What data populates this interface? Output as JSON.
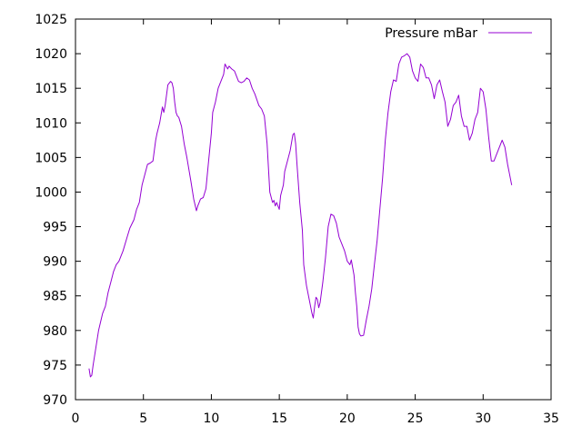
{
  "chart_data": {
    "type": "line",
    "title": "",
    "xlabel": "",
    "ylabel": "",
    "xlim": [
      0,
      35
    ],
    "ylim": [
      970,
      1025
    ],
    "grid": false,
    "legend_position": "top-right",
    "x_ticks": [
      0,
      5,
      10,
      15,
      20,
      25,
      30,
      35
    ],
    "y_ticks": [
      970,
      975,
      980,
      985,
      990,
      995,
      1000,
      1005,
      1010,
      1015,
      1020,
      1025
    ],
    "series": [
      {
        "name": "Pressure mBar",
        "color": "#9400d3",
        "x": [
          1.0,
          1.1,
          1.2,
          1.3,
          1.5,
          1.7,
          2.0,
          2.2,
          2.4,
          2.6,
          2.8,
          3.0,
          3.2,
          3.5,
          3.8,
          4.0,
          4.3,
          4.5,
          4.7,
          4.9,
          5.1,
          5.3,
          5.5,
          5.7,
          5.8,
          5.9,
          6.0,
          6.2,
          6.4,
          6.5,
          6.6,
          6.7,
          6.8,
          7.0,
          7.1,
          7.2,
          7.3,
          7.4,
          7.5,
          7.6,
          7.8,
          8.0,
          8.2,
          8.5,
          8.7,
          8.9,
          9.0,
          9.1,
          9.2,
          9.4,
          9.6,
          9.8,
          10.0,
          10.1,
          10.3,
          10.5,
          10.7,
          10.9,
          11.0,
          11.2,
          11.3,
          11.5,
          11.7,
          12.0,
          12.2,
          12.4,
          12.6,
          12.8,
          13.0,
          13.2,
          13.5,
          13.7,
          13.9,
          14.1,
          14.3,
          14.5,
          14.6,
          14.7,
          14.8,
          15.0,
          15.1,
          15.3,
          15.4,
          15.6,
          15.8,
          16.0,
          16.1,
          16.2,
          16.3,
          16.5,
          16.7,
          16.8,
          17.0,
          17.2,
          17.4,
          17.5,
          17.6,
          17.7,
          17.8,
          17.9,
          18.0,
          18.2,
          18.4,
          18.6,
          18.8,
          19.0,
          19.2,
          19.4,
          19.6,
          19.8,
          20.0,
          20.2,
          20.3,
          20.5,
          20.6,
          20.7,
          20.8,
          20.9,
          21.0,
          21.2,
          21.4,
          21.6,
          21.8,
          22.0,
          22.2,
          22.4,
          22.6,
          22.8,
          23.0,
          23.2,
          23.4,
          23.6,
          23.8,
          24.0,
          24.2,
          24.4,
          24.6,
          24.8,
          25.0,
          25.2,
          25.4,
          25.6,
          25.8,
          26.0,
          26.2,
          26.4,
          26.6,
          26.8,
          27.0,
          27.2,
          27.4,
          27.6,
          27.8,
          28.0,
          28.2,
          28.4,
          28.6,
          28.8,
          29.0,
          29.2,
          29.4,
          29.6,
          29.8,
          30.0,
          30.2,
          30.4,
          30.6,
          30.8,
          31.0,
          31.2,
          31.4,
          31.6,
          31.8,
          32.0,
          32.1
        ],
        "y": [
          974.5,
          973.3,
          973.5,
          975.0,
          977.5,
          980.0,
          982.5,
          983.5,
          985.5,
          987.0,
          988.5,
          989.5,
          990.0,
          991.5,
          993.5,
          994.8,
          996.0,
          997.5,
          998.5,
          1001.0,
          1002.5,
          1004.0,
          1004.2,
          1004.5,
          1006.0,
          1007.5,
          1008.5,
          1010.0,
          1012.3,
          1011.5,
          1012.5,
          1014.0,
          1015.5,
          1016.0,
          1015.8,
          1015.0,
          1013.0,
          1011.5,
          1011.0,
          1010.8,
          1009.5,
          1007.0,
          1005.0,
          1001.5,
          999.0,
          997.3,
          998.0,
          998.5,
          999.0,
          999.2,
          1000.5,
          1004.5,
          1008.5,
          1011.5,
          1013.0,
          1015.0,
          1016.0,
          1017.0,
          1018.5,
          1017.8,
          1018.2,
          1017.8,
          1017.5,
          1016.0,
          1015.8,
          1016.0,
          1016.5,
          1016.2,
          1015.0,
          1014.2,
          1012.5,
          1012.0,
          1011.0,
          1007.0,
          1000.0,
          998.5,
          998.8,
          998.0,
          998.5,
          997.5,
          999.5,
          1001.0,
          1003.0,
          1004.5,
          1006.0,
          1008.3,
          1008.5,
          1007.0,
          1004.0,
          998.5,
          994.5,
          989.5,
          986.5,
          984.5,
          982.5,
          981.8,
          983.5,
          984.8,
          984.5,
          983.3,
          984.0,
          987.0,
          990.5,
          995.0,
          996.8,
          996.6,
          995.5,
          993.5,
          992.5,
          991.5,
          990.0,
          989.5,
          990.2,
          988.0,
          985.5,
          983.5,
          980.5,
          979.5,
          979.2,
          979.3,
          981.5,
          983.5,
          986.0,
          989.5,
          993.0,
          997.5,
          1002.0,
          1007.5,
          1011.5,
          1014.5,
          1016.2,
          1016.0,
          1018.5,
          1019.5,
          1019.7,
          1020.0,
          1019.5,
          1017.5,
          1016.5,
          1016.0,
          1018.5,
          1018.0,
          1016.5,
          1016.5,
          1015.5,
          1013.5,
          1015.5,
          1016.2,
          1014.5,
          1013.0,
          1009.5,
          1010.5,
          1012.5,
          1013.0,
          1014.0,
          1011.0,
          1009.5,
          1009.5,
          1007.5,
          1008.5,
          1010.5,
          1011.5,
          1015.0,
          1014.5,
          1012.0,
          1008.0,
          1004.5,
          1004.5,
          1005.5,
          1006.5,
          1007.5,
          1006.5,
          1004.0,
          1002.0,
          1001.0
        ]
      }
    ]
  }
}
